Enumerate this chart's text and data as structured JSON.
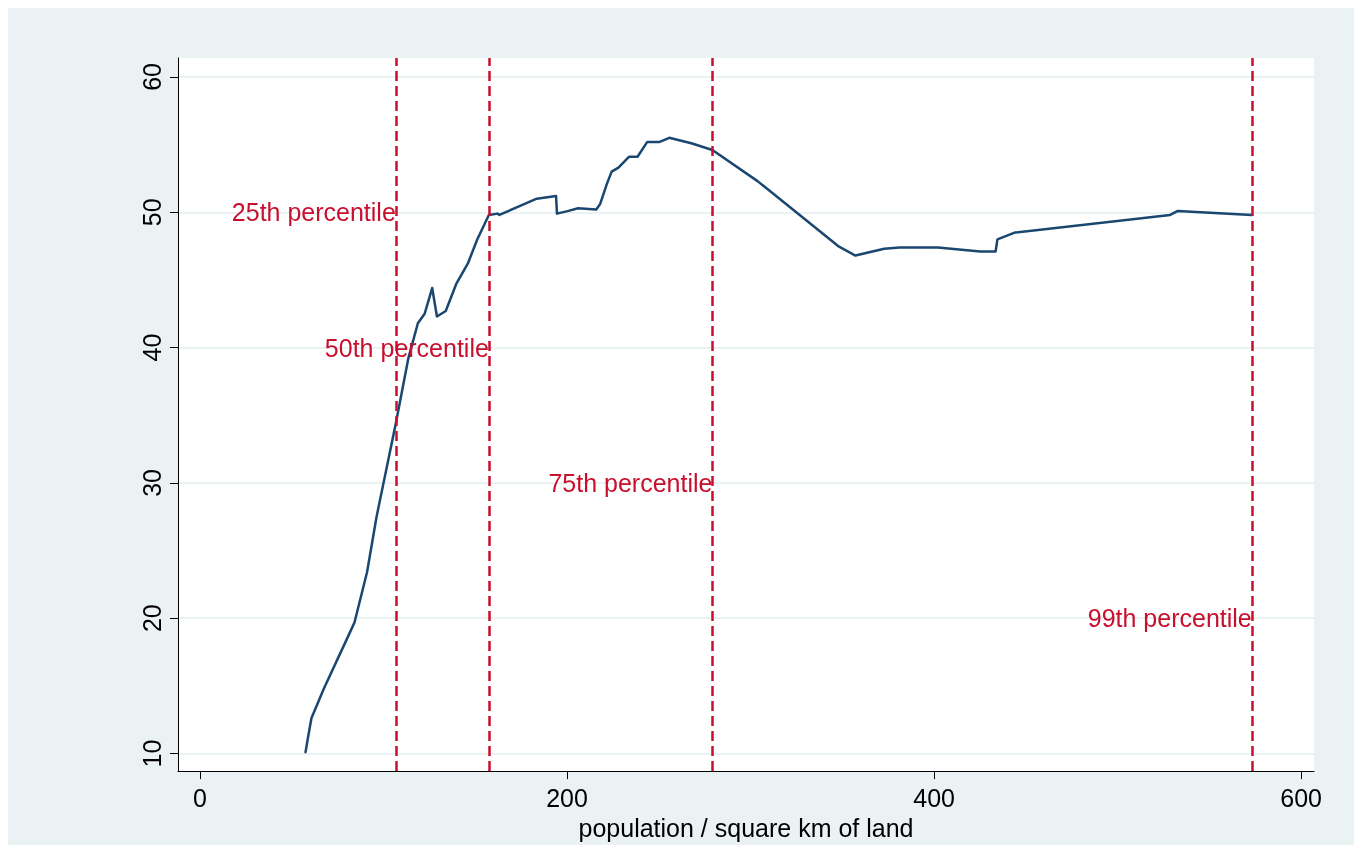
{
  "chart_data": {
    "type": "line",
    "xlabel": "population / square km of land",
    "x": [
      57.5,
      58.6,
      60.7,
      67.5,
      80.5,
      84.2,
      91.0,
      96.2,
      106.7,
      113.5,
      118.7,
      122.4,
      126.5,
      129.1,
      133.9,
      139.6,
      145.9,
      151.1,
      157.4,
      162.1,
      163.1,
      183.5,
      194.0,
      194.5,
      200.8,
      206.0,
      215.9,
      218.0,
      221.7,
      224.3,
      228.0,
      233.7,
      238.4,
      243.7,
      250.5,
      255.7,
      267.7,
      279.2,
      303.8,
      347.7,
      357.1,
      372.8,
      381.2,
      391.6,
      402.1,
      425.1,
      433.5,
      434.5,
      443.9,
      528.6,
      532.8,
      573.1
    ],
    "series": [
      {
        "color": "#1a476f",
        "values": [
          10.1,
          11.0,
          12.6,
          14.8,
          18.6,
          19.7,
          23.4,
          27.5,
          34.4,
          39.2,
          41.8,
          42.5,
          44.4,
          42.3,
          42.7,
          44.7,
          46.2,
          48.0,
          49.8,
          49.9,
          49.8,
          51.0,
          51.2,
          49.9,
          50.1,
          50.3,
          50.2,
          50.6,
          52.1,
          53.0,
          53.3,
          54.1,
          54.1,
          55.2,
          55.2,
          55.5,
          55.1,
          54.6,
          52.3,
          47.5,
          46.8,
          47.3,
          47.4,
          47.4,
          47.4,
          47.1,
          47.1,
          48.0,
          48.5,
          49.8,
          50.1,
          49.8
        ]
      }
    ],
    "xlim": [
      -12,
      607
    ],
    "xticks": [
      0,
      200,
      400,
      600
    ],
    "ylim": [
      8.7,
      61.4
    ],
    "yticks": [
      10,
      20,
      30,
      40,
      50,
      60
    ],
    "grid": "y",
    "marker": "none",
    "line_style": "solid",
    "ref_lines": [
      {
        "axis": "x",
        "value": 106.7,
        "color": "#c8102e",
        "line_style": "dashed"
      },
      {
        "axis": "x",
        "value": 157.4,
        "color": "#c8102e",
        "line_style": "dashed"
      },
      {
        "axis": "x",
        "value": 279.2,
        "color": "#c8102e",
        "line_style": "dashed"
      },
      {
        "axis": "x",
        "value": 573.1,
        "color": "#c8102e",
        "line_style": "dashed"
      }
    ],
    "annotations": [
      {
        "text": "25th percentile",
        "x": 106.7,
        "y": 50
      },
      {
        "text": "50th percentile",
        "x": 157.4,
        "y": 40
      },
      {
        "text": "75th percentile",
        "x": 279.2,
        "y": 30
      },
      {
        "text": "99th percentile",
        "x": 573.1,
        "y": 20
      }
    ]
  }
}
